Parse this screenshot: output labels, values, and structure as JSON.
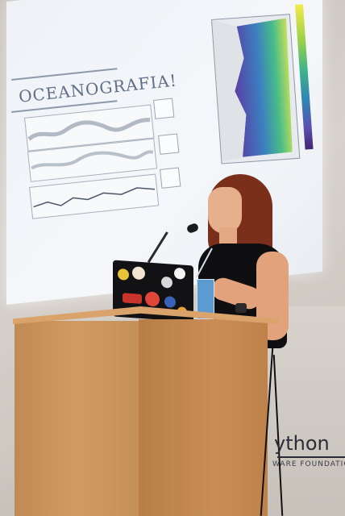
{
  "slide": {
    "title": "OCEANOGRAFIA!"
  },
  "banner": {
    "text": "ython",
    "subtext": "WARE FOUNDATION"
  },
  "colors": {
    "wall": "#d7d2cc",
    "podium": "#c98d55",
    "hair": "#7a2f1a",
    "shirt": "#0f0f11"
  }
}
